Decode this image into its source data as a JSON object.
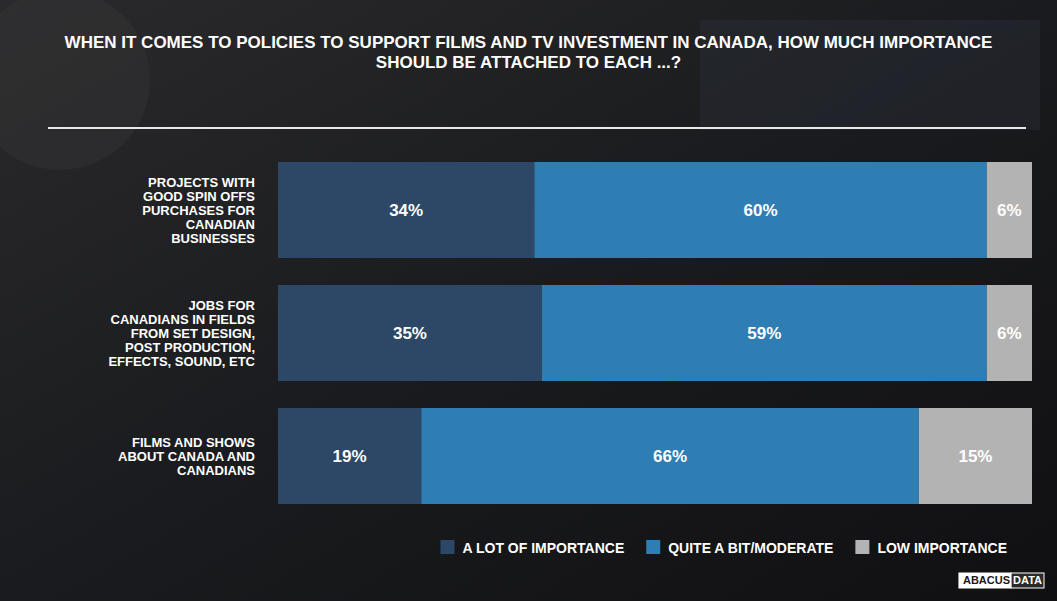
{
  "chart_data": {
    "type": "bar",
    "orientation": "horizontal",
    "stacked": true,
    "data_labels": true,
    "tick_labels": false,
    "legend": "bottom-right",
    "title": "WHEN IT COMES TO POLICIES TO SUPPORT FILMS AND TV INVESTMENT IN CANADA, HOW MUCH IMPORTANCE SHOULD BE ATTACHED TO EACH ...?",
    "logo": "ABACUS DATA",
    "categories": [
      "PROJECTS WITH GOOD SPIN OFFS PURCHASES FOR CANADIAN BUSINESSES",
      "JOBS FOR CANADIANS IN FIELDS FROM SET DESIGN, POST PRODUCTION, EFFECTS, SOUND, ETC",
      "FILMS AND SHOWS ABOUT CANADA AND CANADIANS"
    ],
    "xlim": [
      0,
      100
    ],
    "series": [
      {
        "name": "A LOT OF IMPORTANCE",
        "color": "#2c4866",
        "values": [
          34,
          35,
          19
        ],
        "value_labels": [
          "34%",
          "35%",
          "19%"
        ]
      },
      {
        "name": "QUITE A BIT/MODERATE",
        "color": "#2e7db3",
        "values": [
          60,
          59,
          66
        ],
        "value_labels": [
          "60%",
          "59%",
          "66%"
        ]
      },
      {
        "name": "LOW IMPORTANCE",
        "color": "#b3b3b3",
        "values": [
          6,
          6,
          15
        ],
        "value_labels": [
          "6%",
          "6%",
          "15%"
        ]
      }
    ]
  }
}
